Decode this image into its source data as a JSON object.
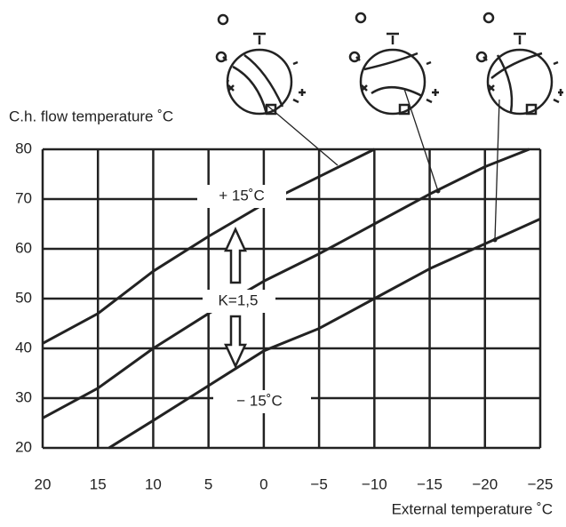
{
  "chart_data": {
    "type": "line",
    "y_label": "C.h. flow temperature ˚C",
    "x_label": "External temperature ˚C",
    "xlim": [
      20,
      -25
    ],
    "ylim": [
      20,
      80
    ],
    "xticks": [
      20,
      15,
      10,
      5,
      0,
      {
        "value": -5,
        "label": "−5"
      },
      {
        "value": -10,
        "label": "−10"
      },
      {
        "value": -15,
        "label": "−15"
      },
      {
        "value": -20,
        "label": "−20"
      },
      {
        "value": -25,
        "label": "−25"
      }
    ],
    "yticks": [
      20,
      30,
      40,
      50,
      60,
      70,
      80
    ],
    "grid": true,
    "series": [
      {
        "color": "#222222",
        "x": [
          20,
          15,
          10,
          5,
          0,
          -5,
          -10
        ],
        "values": [
          41,
          47,
          55.5,
          62.5,
          69,
          74.5,
          80
        ]
      },
      {
        "color": "#222222",
        "x": [
          20,
          15,
          10,
          5,
          0,
          -5,
          -10,
          -15,
          -20,
          -24
        ],
        "values": [
          26,
          32,
          40,
          47,
          53.5,
          59,
          65,
          71,
          76.5,
          80
        ]
      },
      {
        "color": "#222222",
        "x": [
          14,
          10,
          5,
          0,
          -5,
          -10,
          -15,
          -20,
          -25
        ],
        "values": [
          20,
          25.5,
          32.5,
          39.5,
          44,
          50,
          56,
          61,
          66
        ]
      }
    ],
    "annotations": [
      "+ 15˚C",
      "K=1,5",
      "− 15˚C"
    ]
  }
}
